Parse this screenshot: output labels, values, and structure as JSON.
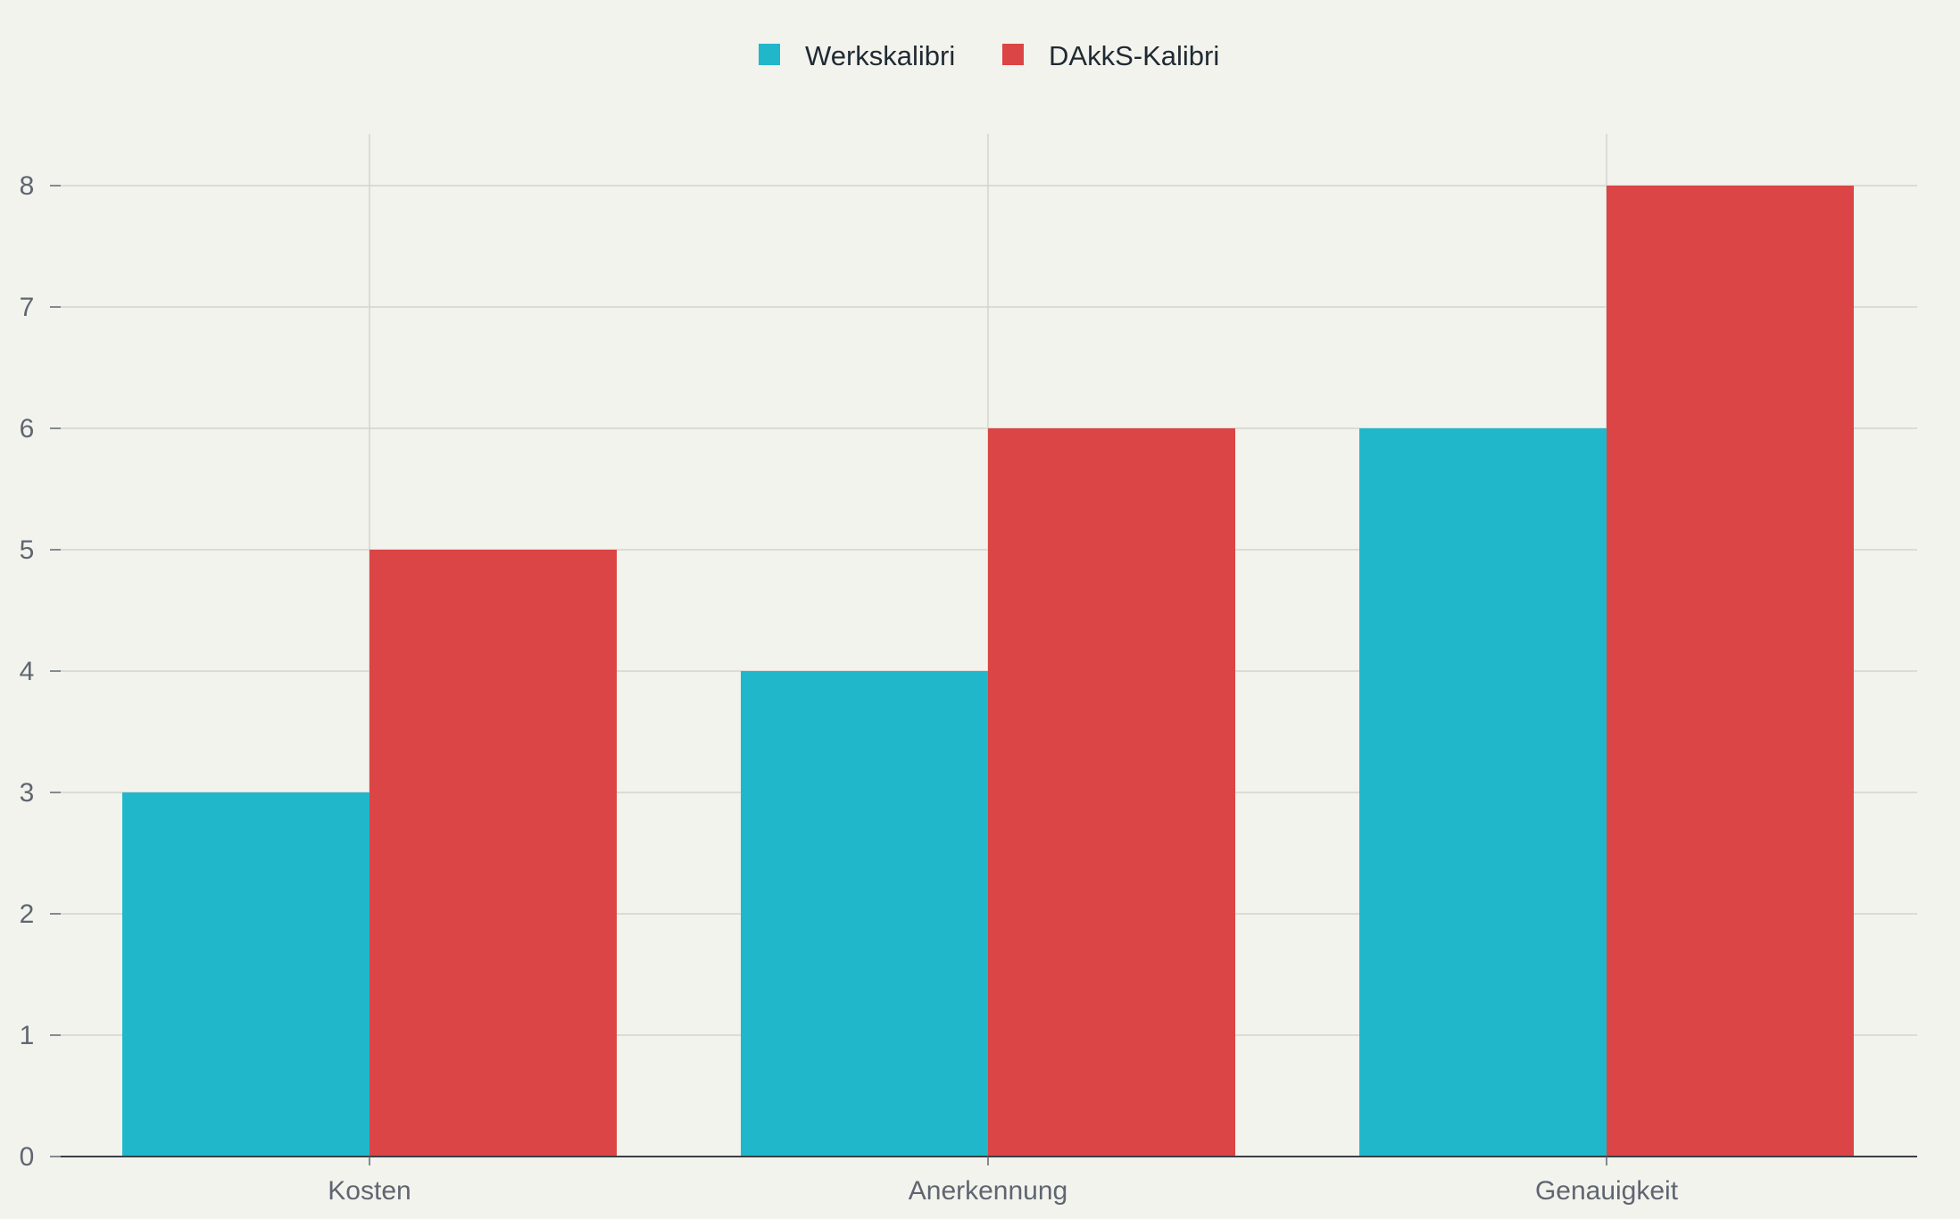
{
  "chart_data": {
    "type": "bar",
    "categories": [
      "Kosten",
      "Anerkennung",
      "Genauigkeit"
    ],
    "series": [
      {
        "name": "Werkskalibri",
        "values": [
          3,
          4,
          6
        ],
        "color": "#20b7cb"
      },
      {
        "name": "DAkkS-Kalibri",
        "values": [
          5,
          6,
          8
        ],
        "color": "#db4545"
      }
    ],
    "title": "",
    "xlabel": "",
    "ylabel": "",
    "ylim": [
      0,
      8
    ],
    "yticks": [
      "0",
      "1",
      "2",
      "3",
      "4",
      "5",
      "6",
      "7",
      "8"
    ],
    "grid": true,
    "legend_position": "top-center"
  }
}
